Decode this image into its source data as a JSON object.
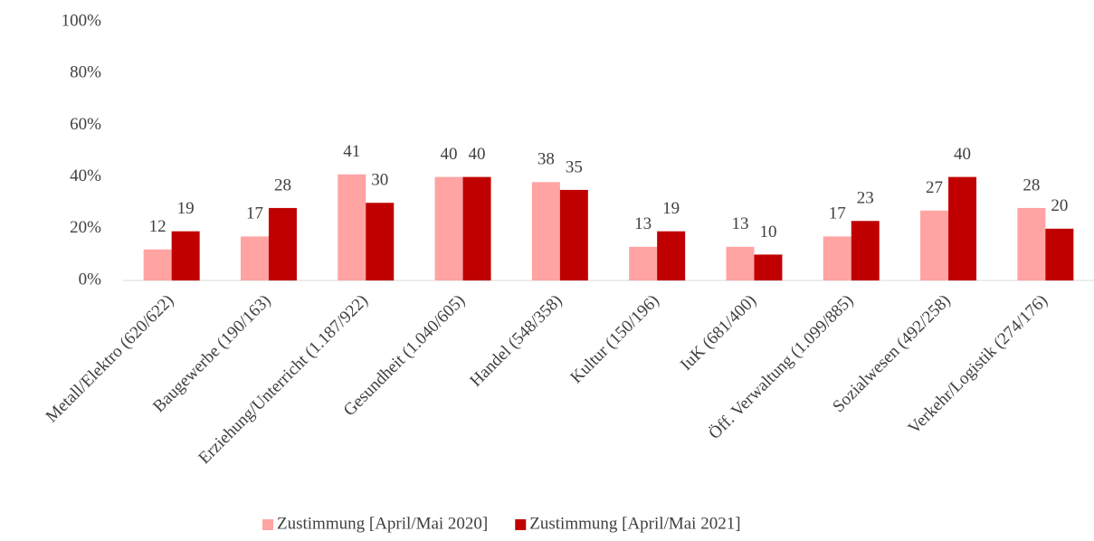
{
  "chart_data": {
    "type": "bar",
    "categories": [
      "Metall/Elektro (620/622)",
      "Baugewerbe (190/163)",
      "Erziehung/Unterricht (1.187/922)",
      "Gesundheit (1.040/605)",
      "Handel (548/358)",
      "Kultur (150/196)",
      "IuK (681/400)",
      "Öff. Verwaltung (1.099/885)",
      "Sozialwesen (492/258)",
      "Verkehr/Logistik (274/176)"
    ],
    "series": [
      {
        "name": "Zustimmung [April/Mai 2020]",
        "color": "#ffa3a3",
        "values": [
          12,
          17,
          41,
          40,
          38,
          13,
          13,
          17,
          27,
          28
        ]
      },
      {
        "name": "Zustimmung [April/Mai 2021]",
        "color": "#c00000",
        "values": [
          19,
          28,
          30,
          40,
          35,
          19,
          10,
          23,
          40,
          20
        ]
      }
    ],
    "ylim": [
      0,
      100
    ],
    "yticks": [
      {
        "value": 0,
        "label": "0%"
      },
      {
        "value": 20,
        "label": "20%"
      },
      {
        "value": 40,
        "label": "40%"
      },
      {
        "value": 60,
        "label": "60%"
      },
      {
        "value": 80,
        "label": "80%"
      },
      {
        "value": 100,
        "label": "100%"
      }
    ],
    "grid": false,
    "legend": "bottom"
  }
}
